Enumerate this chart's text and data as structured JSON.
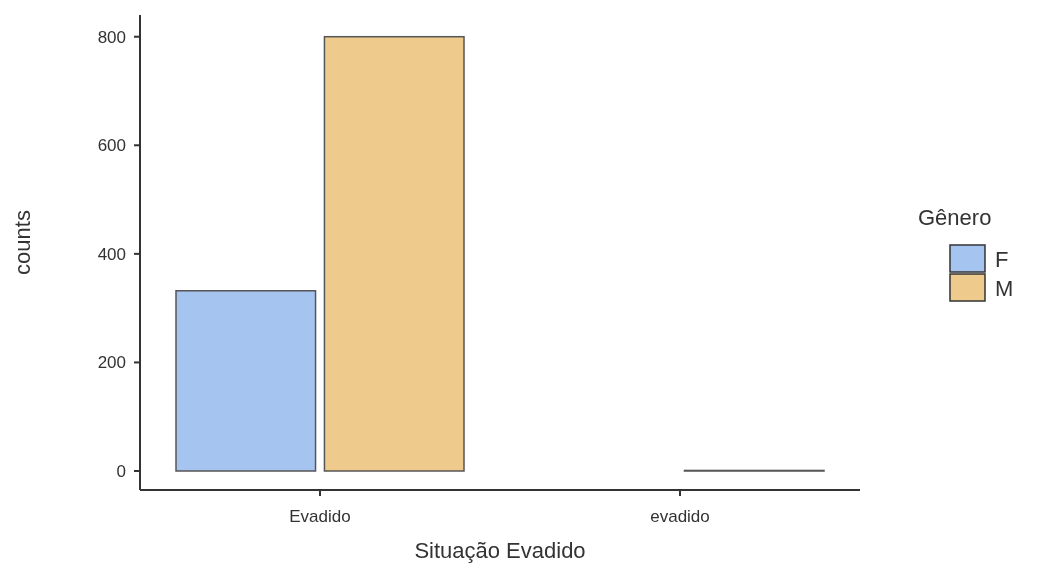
{
  "chart_data": {
    "type": "bar",
    "categories": [
      "Evadido",
      "evadido"
    ],
    "xlabel": "Situação Evadido",
    "ylabel": "counts",
    "legend_title": "Gênero",
    "series": [
      {
        "name": "F",
        "color": "#a6c4f0",
        "values": [
          332,
          0
        ]
      },
      {
        "name": "M",
        "color": "#eecb8c",
        "values": [
          800,
          1
        ]
      }
    ],
    "ylim": [
      -35,
      840
    ],
    "yticks": [
      0,
      200,
      400,
      600,
      800
    ],
    "grid": false,
    "legend": "right"
  }
}
